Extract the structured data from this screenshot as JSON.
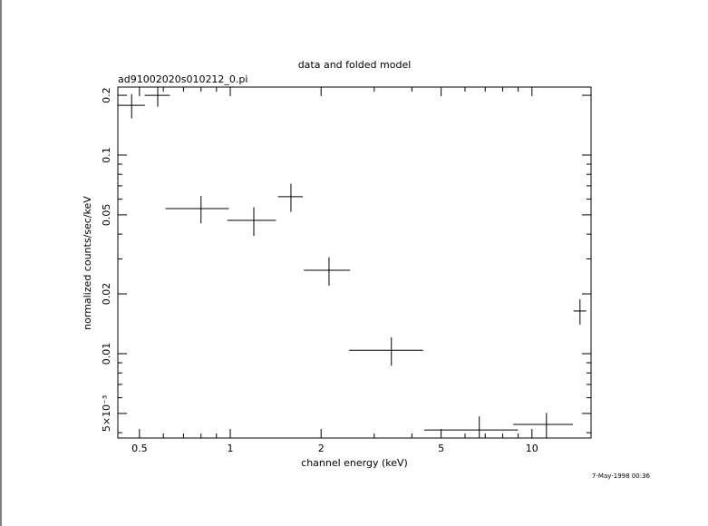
{
  "chart_data": {
    "type": "scatter",
    "title": "data and folded model",
    "subtitle": "ad91002020s010212_0.pi",
    "x_label": "channel energy (keV)",
    "y_label": "normalized counts/sec/keV",
    "annotation": "7-May-1998 00:36",
    "x_log": true,
    "y_log": true,
    "color": "#000000",
    "x": [
      0.471,
      0.575,
      0.8,
      1.197,
      1.589,
      2.125,
      3.42,
      6.69,
      11.17,
      14.43
    ],
    "xerr": [
      0.05,
      0.055,
      0.19,
      0.22,
      0.15,
      0.37,
      0.94,
      2.3,
      2.5,
      0.7
    ],
    "y": [
      0.178,
      0.2,
      0.0538,
      0.0469,
      0.0617,
      0.0263,
      0.0104,
      0.00413,
      0.0044,
      0.0164
    ],
    "yerr": [
      0.025,
      0.025,
      0.0085,
      0.0077,
      0.01,
      0.0043,
      0.0017,
      0.0007,
      0.00063,
      0.0024
    ],
    "xlim": [
      0.424,
      15.7
    ],
    "ylim": [
      0.00376,
      0.22
    ],
    "xticks": [
      0.5,
      1,
      2,
      5,
      10
    ],
    "xminor": [
      0.6,
      0.7,
      0.8,
      0.9,
      3,
      4,
      6,
      7,
      8,
      9
    ],
    "yticks": [
      {
        "value": 0.005,
        "label": "5×10⁻³"
      },
      0.01,
      0.02,
      0.05,
      0.1,
      0.2
    ],
    "yminor": [
      0.004,
      0.006,
      0.007,
      0.008,
      0.009,
      0.03,
      0.04,
      0.06,
      0.07,
      0.08,
      0.09
    ]
  }
}
